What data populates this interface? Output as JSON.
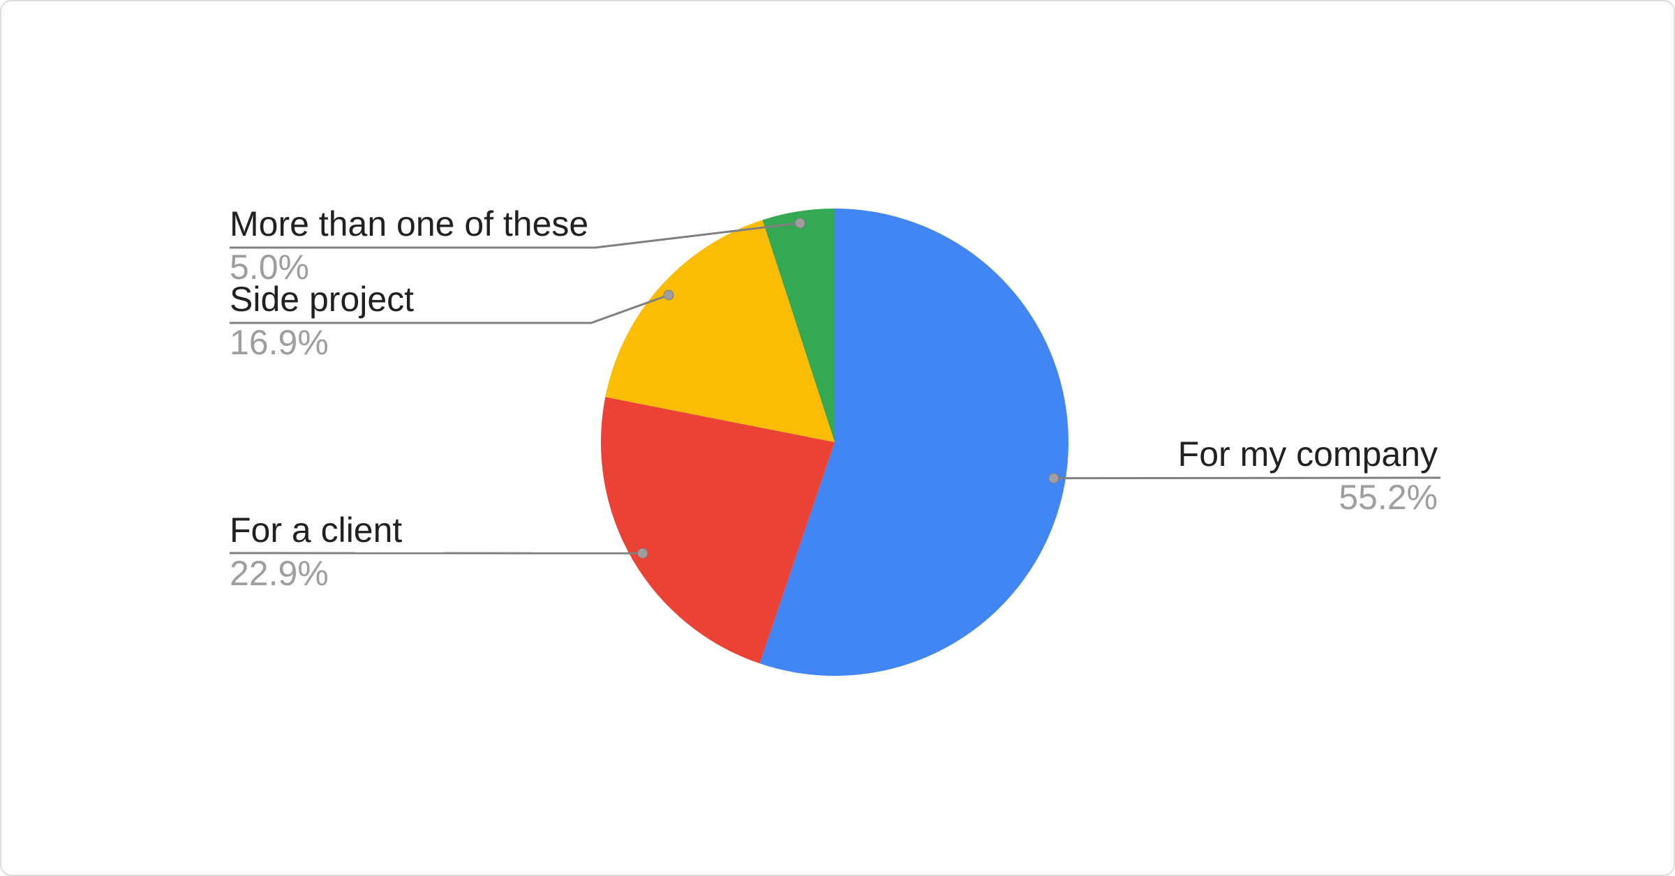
{
  "card": {
    "background_color": "#ffffff",
    "border_color": "#dadce0"
  },
  "chart_data": {
    "type": "pie",
    "title": "",
    "direction": "clockwise",
    "start_angle_deg": 0,
    "total_percent": 100,
    "legend_position": "labeled-callouts",
    "slices": [
      {
        "label": "For my company",
        "percent": 55.2,
        "percent_label": "55.2%",
        "color": "#4285F4"
      },
      {
        "label": "For a client",
        "percent": 22.9,
        "percent_label": "22.9%",
        "color": "#EA4335"
      },
      {
        "label": "Side project",
        "percent": 16.9,
        "percent_label": "16.9%",
        "color": "#FBBC04"
      },
      {
        "label": "More than one of these",
        "percent": 5.0,
        "percent_label": "5.0%",
        "color": "#34A853"
      }
    ],
    "label_text_color": "#212121",
    "percent_text_color": "#9e9e9e",
    "leader_line_color": "#808080",
    "leader_dot_color": "#9e9e9e"
  }
}
